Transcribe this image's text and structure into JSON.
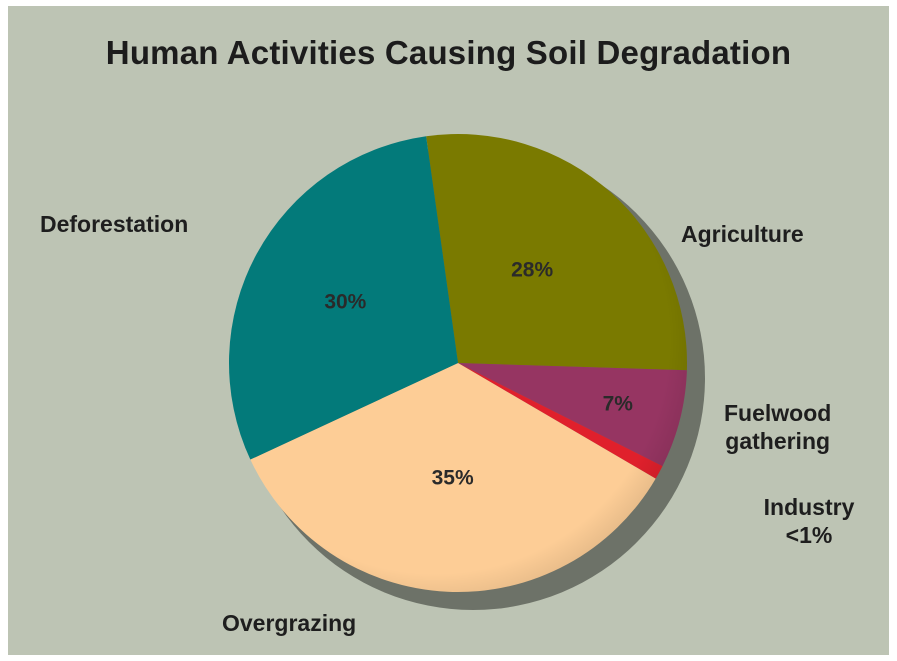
{
  "chart_data": {
    "type": "pie",
    "title": "Human Activities Causing Soil Degradation",
    "slices": [
      {
        "label": "Agriculture",
        "value": 28,
        "value_label": "28%",
        "color": "#7a7a00"
      },
      {
        "label": "Fuelwood gathering",
        "value": 7,
        "value_label": "7%",
        "color": "#963562"
      },
      {
        "label": "Industry",
        "value": 1,
        "value_label": "<1%",
        "color": "#e0202c"
      },
      {
        "label": "Overgrazing",
        "value": 35,
        "value_label": "35%",
        "color": "#fdcd96"
      },
      {
        "label": "Deforestation",
        "value": 30,
        "value_label": "30%",
        "color": "#037a7a"
      }
    ]
  },
  "labels": {
    "deforestation": "Deforestation",
    "agriculture": "Agriculture",
    "fuelwood_line1": "Fuelwood",
    "fuelwood_line2": "gathering",
    "industry_line1": "Industry",
    "industry_line2": "<1%",
    "overgrazing": "Overgrazing"
  }
}
